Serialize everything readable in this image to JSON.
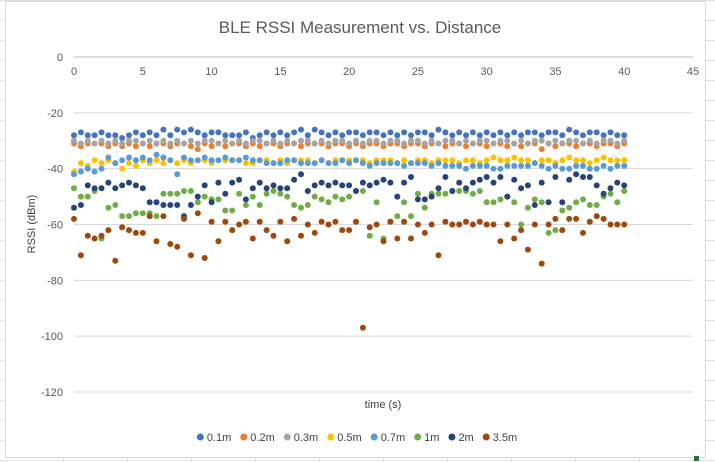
{
  "chart_data": {
    "type": "scatter",
    "title": "BLE RSSI Measurement vs. Distance",
    "xlabel": "time (s)",
    "ylabel": "RSSI (dBm)",
    "xlim": [
      0,
      45
    ],
    "ylim": [
      -120,
      0
    ],
    "xticks": [
      0,
      5,
      10,
      15,
      20,
      25,
      30,
      35,
      40,
      45
    ],
    "yticks": [
      0,
      -20,
      -40,
      -60,
      -80,
      -100,
      -120
    ],
    "legend_position": "bottom",
    "x": [
      0,
      0.5,
      1,
      1.5,
      2,
      2.5,
      3,
      3.5,
      4,
      4.5,
      5,
      5.5,
      6,
      6.5,
      7,
      7.5,
      8,
      8.5,
      9,
      9.5,
      10,
      10.5,
      11,
      11.5,
      12,
      12.5,
      13,
      13.5,
      14,
      14.5,
      15,
      15.5,
      16,
      16.5,
      17,
      17.5,
      18,
      18.5,
      19,
      19.5,
      20,
      20.5,
      21,
      21.5,
      22,
      22.5,
      23,
      23.5,
      24,
      24.5,
      25,
      25.5,
      26,
      26.5,
      27,
      27.5,
      28,
      28.5,
      29,
      29.5,
      30,
      30.5,
      31,
      31.5,
      32,
      32.5,
      33,
      33.5,
      34,
      34.5,
      35,
      35.5,
      36,
      36.5,
      37,
      37.5,
      38,
      38.5,
      39,
      39.5,
      40
    ],
    "series": [
      {
        "name": "0.1m",
        "color": "#4472c4",
        "values": [
          -28,
          -27,
          -28,
          -28,
          -27,
          -28,
          -28,
          -29,
          -28,
          -27,
          -28,
          -27,
          -28,
          -26,
          -28,
          -26,
          -27,
          -26,
          -27,
          -28,
          -27,
          -27,
          -28,
          -28,
          -28,
          -27,
          -29,
          -28,
          -27,
          -28,
          -27,
          -28,
          -27,
          -26,
          -28,
          -26,
          -27,
          -28,
          -27,
          -28,
          -27,
          -27,
          -28,
          -27,
          -27,
          -28,
          -27,
          -28,
          -27,
          -28,
          -27,
          -27,
          -28,
          -26,
          -27,
          -28,
          -27,
          -28,
          -27,
          -28,
          -27,
          -28,
          -27,
          -28,
          -27,
          -28,
          -27,
          -27,
          -28,
          -27,
          -27,
          -28,
          -26,
          -27,
          -28,
          -27,
          -27,
          -28,
          -27,
          -28,
          -28
        ]
      },
      {
        "name": "0.2m",
        "color": "#ed7d31",
        "values": [
          -31,
          -32,
          -31,
          -31,
          -31,
          -32,
          -31,
          -32,
          -31,
          -32,
          -31,
          -32,
          -31,
          -31,
          -32,
          -31,
          -31,
          -32,
          -33,
          -31,
          -32,
          -31,
          -32,
          -31,
          -31,
          -32,
          -31,
          -32,
          -31,
          -31,
          -32,
          -31,
          -31,
          -32,
          -31,
          -31,
          -31,
          -32,
          -31,
          -31,
          -32,
          -31,
          -32,
          -31,
          -31,
          -32,
          -31,
          -31,
          -32,
          -31,
          -31,
          -32,
          -31,
          -31,
          -32,
          -31,
          -31,
          -32,
          -31,
          -31,
          -32,
          -31,
          -31,
          -32,
          -31,
          -32,
          -31,
          -31,
          -33,
          -31,
          -32,
          -31,
          -31,
          -32,
          -31,
          -31,
          -32,
          -31,
          -31,
          -32,
          -31
        ]
      },
      {
        "name": "0.3m",
        "color": "#a5a5a5",
        "values": [
          -30,
          -31,
          -30,
          -31,
          -30,
          -31,
          -30,
          -31,
          -30,
          -30,
          -31,
          -30,
          -31,
          -30,
          -31,
          -30,
          -31,
          -30,
          -31,
          -30,
          -30,
          -31,
          -30,
          -31,
          -30,
          -31,
          -30,
          -30,
          -31,
          -30,
          -31,
          -30,
          -31,
          -30,
          -30,
          -31,
          -30,
          -31,
          -30,
          -30,
          -31,
          -30,
          -31,
          -30,
          -30,
          -31,
          -30,
          -30,
          -31,
          -30,
          -30,
          -31,
          -30,
          -31,
          -30,
          -30,
          -31,
          -30,
          -31,
          -30,
          -30,
          -31,
          -30,
          -30,
          -31,
          -30,
          -31,
          -30,
          -30,
          -31,
          -30,
          -31,
          -30,
          -30,
          -31,
          -30,
          -31,
          -30,
          -30,
          -31,
          -30
        ]
      },
      {
        "name": "0.5m",
        "color": "#ffc000",
        "values": [
          -41,
          -38,
          -39,
          -37,
          -38,
          -37,
          -38,
          -40,
          -38,
          -39,
          -37,
          -38,
          -37,
          -38,
          -37,
          -38,
          -37,
          -38,
          -37,
          -37,
          -38,
          -37,
          -37,
          -37,
          -37,
          -38,
          -38,
          -37,
          -37,
          -38,
          -37,
          -38,
          -37,
          -37,
          -37,
          -38,
          -37,
          -38,
          -37,
          -37,
          -37,
          -37,
          -37,
          -38,
          -37,
          -37,
          -37,
          -38,
          -37,
          -38,
          -37,
          -37,
          -38,
          -37,
          -37,
          -37,
          -38,
          -37,
          -37,
          -38,
          -37,
          -36,
          -37,
          -37,
          -36,
          -37,
          -37,
          -38,
          -37,
          -37,
          -38,
          -37,
          -36,
          -37,
          -37,
          -38,
          -37,
          -36,
          -37,
          -37,
          -37
        ]
      },
      {
        "name": "0.7m",
        "color": "#5b9bd5",
        "values": [
          -42,
          -41,
          -40,
          -41,
          -40,
          -36,
          -38,
          -37,
          -36,
          -37,
          -36,
          -37,
          -35,
          -36,
          -37,
          -42,
          -36,
          -37,
          -37,
          -36,
          -37,
          -37,
          -36,
          -37,
          -37,
          -36,
          -37,
          -37,
          -38,
          -38,
          -38,
          -37,
          -37,
          -38,
          -38,
          -38,
          -37,
          -38,
          -38,
          -37,
          -38,
          -37,
          -38,
          -39,
          -38,
          -38,
          -38,
          -38,
          -39,
          -38,
          -38,
          -38,
          -39,
          -38,
          -39,
          -39,
          -39,
          -40,
          -39,
          -39,
          -39,
          -40,
          -40,
          -39,
          -39,
          -39,
          -39,
          -38,
          -39,
          -40,
          -39,
          -40,
          -40,
          -39,
          -39,
          -40,
          -40,
          -39,
          -40,
          -39,
          -39
        ]
      },
      {
        "name": "1m",
        "color": "#70ad47",
        "values": [
          -47,
          -50,
          -50,
          -48,
          -65,
          -54,
          -53,
          -57,
          -57,
          -56,
          -56,
          -56,
          -57,
          -49,
          -49,
          -49,
          -48,
          -48,
          -52,
          -50,
          -51,
          -51,
          -55,
          -55,
          -49,
          -53,
          -50,
          -53,
          -49,
          -48,
          -49,
          -50,
          -53,
          -54,
          -53,
          -50,
          -51,
          -52,
          -50,
          -51,
          -50,
          -48,
          -48,
          -64,
          -52,
          -65,
          -59,
          -57,
          -52,
          -57,
          -49,
          -54,
          -49,
          -49,
          -49,
          -48,
          -48,
          -48,
          -49,
          -48,
          -52,
          -52,
          -51,
          -50,
          -52,
          -60,
          -54,
          -51,
          -52,
          -63,
          -62,
          -55,
          -54,
          -52,
          -51,
          -53,
          -53,
          -50,
          -49,
          -52,
          -48
        ]
      },
      {
        "name": "2m",
        "color": "#264478",
        "values": [
          -54,
          -53,
          -46,
          -47,
          -47,
          -45,
          -47,
          -46,
          -45,
          -46,
          -47,
          -52,
          -52,
          -53,
          -53,
          -53,
          -57,
          -53,
          -50,
          -46,
          -52,
          -45,
          -49,
          -45,
          -44,
          -51,
          -47,
          -45,
          -47,
          -46,
          -47,
          -47,
          -44,
          -42,
          -48,
          -46,
          -45,
          -46,
          -45,
          -46,
          -46,
          -48,
          -45,
          -46,
          -45,
          -44,
          -45,
          -50,
          -45,
          -43,
          -51,
          -51,
          -50,
          -47,
          -43,
          -48,
          -45,
          -47,
          -45,
          -44,
          -43,
          -45,
          -43,
          -50,
          -44,
          -47,
          -46,
          -53,
          -45,
          -52,
          -43,
          -52,
          -44,
          -42,
          -43,
          -43,
          -46,
          -49,
          -47,
          -45,
          -46
        ]
      },
      {
        "name": "3.5m",
        "color": "#9e480e",
        "values": [
          -58,
          -71,
          -64,
          -65,
          -64,
          -62,
          -73,
          -61,
          -62,
          -63,
          -63,
          -57,
          -66,
          -57,
          -67,
          -68,
          -58,
          -71,
          -56,
          -72,
          -59,
          -66,
          -59,
          -62,
          -60,
          -59,
          -65,
          -59,
          -62,
          -64,
          -59,
          -66,
          -58,
          -64,
          -60,
          -63,
          -59,
          -60,
          -59,
          -62,
          -62,
          -59,
          -97,
          -61,
          -60,
          -66,
          -59,
          -65,
          -59,
          -65,
          -60,
          -63,
          -60,
          -71,
          -59,
          -60,
          -60,
          -59,
          -60,
          -59,
          -60,
          -60,
          -66,
          -60,
          -65,
          -62,
          -69,
          -60,
          -74,
          -60,
          -58,
          -62,
          -58,
          -58,
          -63,
          -59,
          -57,
          -58,
          -60,
          -60,
          -60
        ]
      }
    ]
  }
}
